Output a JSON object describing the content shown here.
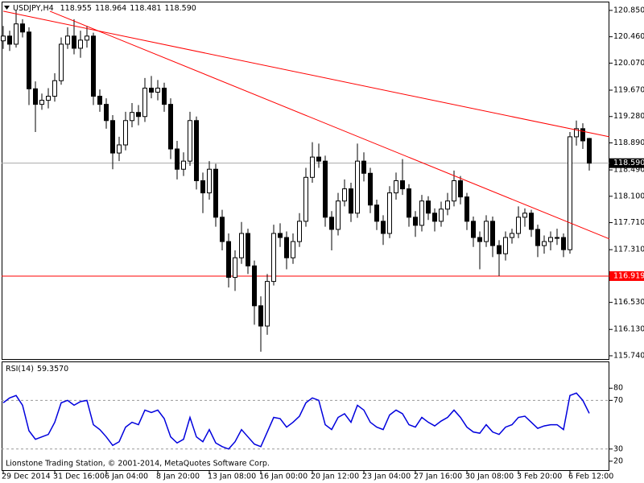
{
  "chart_data": {
    "type": "candlestick",
    "symbol": "USDJPY,H4",
    "last_price_label": "118.590",
    "categories": [
      "29 Dec 2014",
      null,
      null,
      null,
      null,
      null,
      null,
      null,
      "31 Dec 16:00",
      null,
      null,
      null,
      null,
      null,
      null,
      null,
      "6 Jan 04:00",
      null,
      null,
      null,
      null,
      null,
      null,
      null,
      "8 Jan 20:00",
      null,
      null,
      null,
      null,
      null,
      null,
      null,
      "13 Jan 08:00",
      null,
      null,
      null,
      null,
      null,
      null,
      null,
      "16 Jan 00:00",
      null,
      null,
      null,
      null,
      null,
      null,
      null,
      "20 Jan 12:00",
      null,
      null,
      null,
      null,
      null,
      null,
      null,
      "23 Jan 04:00",
      null,
      null,
      null,
      null,
      null,
      null,
      null,
      "27 Jan 16:00",
      null,
      null,
      null,
      null,
      null,
      null,
      null,
      "30 Jan 08:00",
      null,
      null,
      null,
      null,
      null,
      null,
      null,
      "3 Feb 20:00",
      null,
      null,
      null,
      null,
      null,
      null,
      null,
      "6 Feb 12:00",
      null,
      null,
      null
    ],
    "open": [
      120.4,
      120.47,
      120.35,
      120.65,
      120.53,
      119.69,
      119.46,
      119.52,
      119.58,
      119.81,
      120.35,
      120.47,
      120.29,
      120.41,
      120.47,
      119.58,
      119.46,
      119.22,
      118.74,
      118.86,
      119.22,
      119.34,
      119.28,
      119.7,
      119.64,
      119.7,
      119.46,
      118.8,
      118.5,
      118.62,
      119.22,
      118.33,
      118.15,
      118.5,
      117.79,
      117.43,
      116.9,
      117.19,
      117.55,
      117.07,
      116.48,
      116.18,
      116.84,
      117.55,
      117.49,
      117.19,
      117.43,
      117.73,
      118.38,
      118.68,
      118.62,
      117.79,
      117.61,
      118.03,
      118.21,
      117.85,
      118.62,
      118.44,
      117.97,
      117.73,
      117.55,
      118.15,
      118.33,
      118.21,
      117.79,
      117.67,
      118.03,
      117.85,
      117.73,
      117.91,
      118.03,
      118.33,
      118.09,
      117.73,
      117.49,
      117.43,
      117.73,
      117.37,
      117.25,
      117.49,
      117.55,
      117.79,
      117.85,
      117.61,
      117.37,
      117.43,
      117.49,
      117.49,
      117.31,
      118.98,
      119.1,
      118.955
    ],
    "high": [
      120.62,
      120.55,
      120.85,
      120.72,
      120.6,
      119.8,
      119.62,
      119.7,
      119.92,
      120.45,
      120.6,
      120.72,
      120.55,
      120.62,
      120.52,
      119.68,
      119.55,
      119.3,
      118.98,
      119.35,
      119.48,
      119.45,
      119.85,
      119.88,
      119.82,
      119.78,
      119.55,
      118.92,
      118.75,
      119.35,
      119.28,
      118.45,
      118.62,
      118.58,
      117.9,
      117.55,
      117.3,
      117.72,
      117.62,
      117.15,
      116.62,
      116.95,
      117.68,
      117.7,
      117.58,
      117.55,
      117.85,
      118.52,
      118.9,
      118.88,
      118.7,
      117.88,
      118.15,
      118.35,
      118.3,
      118.88,
      118.75,
      118.52,
      118.05,
      117.82,
      118.25,
      118.45,
      118.65,
      118.28,
      117.88,
      118.12,
      118.1,
      117.92,
      118.02,
      118.15,
      118.48,
      118.4,
      118.15,
      117.8,
      117.58,
      117.82,
      117.8,
      117.45,
      117.58,
      117.62,
      117.95,
      117.92,
      117.9,
      117.68,
      117.52,
      117.58,
      117.62,
      117.55,
      119.05,
      119.22,
      119.18,
      118.964
    ],
    "low": [
      120.28,
      120.25,
      120.3,
      120.45,
      119.45,
      119.05,
      119.38,
      119.4,
      119.5,
      119.75,
      120.28,
      120.2,
      120.15,
      120.3,
      119.45,
      119.35,
      119.1,
      118.5,
      118.62,
      118.78,
      119.12,
      119.15,
      119.2,
      119.55,
      119.52,
      119.35,
      118.65,
      118.35,
      118.4,
      118.55,
      118.2,
      117.85,
      118.05,
      117.65,
      117.3,
      116.75,
      116.7,
      117.1,
      116.95,
      116.2,
      115.8,
      116.05,
      116.78,
      117.35,
      117.02,
      117.1,
      117.35,
      117.65,
      118.3,
      118.52,
      117.65,
      117.3,
      117.52,
      117.95,
      117.72,
      117.78,
      118.32,
      117.85,
      117.6,
      117.38,
      117.48,
      118.05,
      118.12,
      117.65,
      117.5,
      117.58,
      117.75,
      117.58,
      117.65,
      117.82,
      117.95,
      117.98,
      117.6,
      117.35,
      117.02,
      117.35,
      117.2,
      116.92,
      117.15,
      117.4,
      117.48,
      117.65,
      117.5,
      117.2,
      117.25,
      117.3,
      117.38,
      117.2,
      117.25,
      118.85,
      118.8,
      118.481
    ],
    "close": [
      120.47,
      120.35,
      120.65,
      120.53,
      119.69,
      119.46,
      119.52,
      119.58,
      119.81,
      120.35,
      120.47,
      120.29,
      120.41,
      120.47,
      119.58,
      119.46,
      119.22,
      118.74,
      118.86,
      119.22,
      119.34,
      119.28,
      119.7,
      119.64,
      119.7,
      119.46,
      118.8,
      118.5,
      118.62,
      119.22,
      118.33,
      118.15,
      118.5,
      117.79,
      117.43,
      116.9,
      117.19,
      117.55,
      117.07,
      116.48,
      116.18,
      116.84,
      117.55,
      117.49,
      117.19,
      117.43,
      117.73,
      118.38,
      118.68,
      118.62,
      117.79,
      117.61,
      118.03,
      118.21,
      117.85,
      118.62,
      118.44,
      117.97,
      117.73,
      117.55,
      118.15,
      118.33,
      118.21,
      117.79,
      117.67,
      118.03,
      117.85,
      117.73,
      117.91,
      118.03,
      118.33,
      118.09,
      117.73,
      117.49,
      117.43,
      117.73,
      117.37,
      117.25,
      117.49,
      117.55,
      117.79,
      117.85,
      117.61,
      117.37,
      117.43,
      117.49,
      117.49,
      117.31,
      118.98,
      119.1,
      118.92,
      118.59
    ],
    "up_color": "#ffffff",
    "down_color": "#000000",
    "wick_color": "#000000",
    "ylim": [
      115.68,
      120.98
    ],
    "yticks": [
      {
        "value": 120.85,
        "label": "120.850"
      },
      {
        "value": 120.46,
        "label": "120.460"
      },
      {
        "value": 120.07,
        "label": "120.070"
      },
      {
        "value": 119.67,
        "label": "119.670"
      },
      {
        "value": 119.28,
        "label": "119.280"
      },
      {
        "value": 118.89,
        "label": "118.890"
      },
      {
        "value": 118.49,
        "label": "118.490"
      },
      {
        "value": 118.1,
        "label": "118.100"
      },
      {
        "value": 117.71,
        "label": "117.710"
      },
      {
        "value": 117.31,
        "label": "117.310"
      },
      {
        "value": 116.53,
        "label": "116.530"
      },
      {
        "value": 116.13,
        "label": "116.130"
      },
      {
        "value": 115.74,
        "label": "115.740"
      }
    ],
    "hline": {
      "value": 116.919,
      "color": "#ff0000"
    },
    "trendlines": [
      {
        "x": [
          0,
          94.1
        ],
        "y": [
          120.838,
          118.98
        ]
      },
      {
        "x": [
          7.25,
          94.1
        ],
        "y": [
          120.838,
          117.47
        ]
      }
    ],
    "trendline_color": "#ff0000",
    "rsi": {
      "title": "RSI(14)",
      "last_label": "59.3570",
      "color": "#0000dd",
      "values": [
        68,
        72,
        74,
        66,
        45,
        38,
        40,
        42,
        52,
        68,
        70,
        66,
        69,
        70,
        50,
        46,
        40,
        33,
        36,
        48,
        52,
        50,
        62,
        60,
        62,
        55,
        40,
        35,
        38,
        56,
        40,
        36,
        46,
        35,
        32,
        30,
        36,
        46,
        40,
        34,
        32,
        44,
        56,
        55,
        48,
        52,
        57,
        68,
        72,
        70,
        50,
        46,
        56,
        59,
        52,
        66,
        62,
        52,
        48,
        46,
        58,
        62,
        59,
        50,
        48,
        56,
        52,
        49,
        53,
        56,
        62,
        56,
        48,
        44,
        43,
        50,
        44,
        42,
        48,
        50,
        56,
        57,
        52,
        47,
        49,
        50,
        50,
        46,
        74,
        76,
        70,
        59.357
      ],
      "ylim": [
        12,
        102
      ],
      "yticks": [
        80,
        70,
        30,
        20
      ],
      "levels": [
        70,
        30
      ]
    },
    "footer": "Lionstone Trading Station, © 2001-2014, MetaQuotes Software Corp."
  }
}
